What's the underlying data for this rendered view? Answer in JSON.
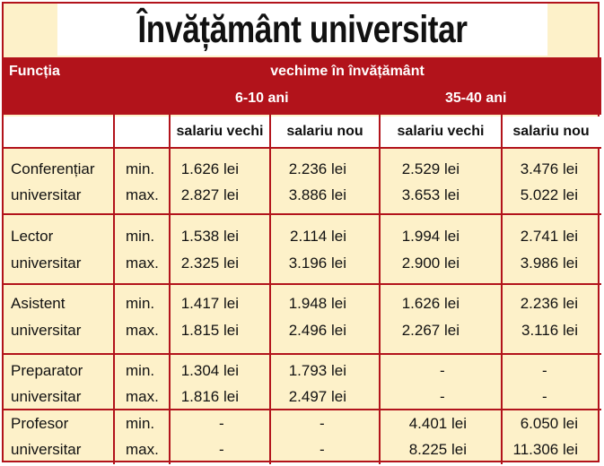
{
  "title": "Învățământ universitar",
  "header": {
    "function_label": "Funcția",
    "seniority_label": "vechime în învățământ",
    "group1": "6-10 ani",
    "group2": "35-40 ani"
  },
  "columns": [
    "salariu vechi",
    "salariu nou",
    "salariu vechi",
    "salariu nou"
  ],
  "rows": [
    {
      "title1": "Conferențiar",
      "title2": "universitar",
      "min": {
        "label": "min.",
        "values": [
          "1.626 lei",
          "2.236 lei",
          "2.529 lei",
          "3.476 lei"
        ]
      },
      "max": {
        "label": "max.",
        "values": [
          "2.827 lei",
          "3.886 lei",
          "3.653 lei",
          "5.022 lei"
        ]
      }
    },
    {
      "title1": "Lector",
      "title2": "universitar",
      "min": {
        "label": "min.",
        "values": [
          "1.538 lei",
          "2.114 lei",
          "1.994 lei",
          "2.741 lei"
        ]
      },
      "max": {
        "label": "max.",
        "values": [
          "2.325 lei",
          "3.196 lei",
          "2.900 lei",
          "3.986 lei"
        ]
      }
    },
    {
      "title1": "Asistent",
      "title2": "universitar",
      "min": {
        "label": "min.",
        "values": [
          "1.417 lei",
          "1.948 lei",
          "1.626 lei",
          "2.236 lei"
        ]
      },
      "max": {
        "label": "max.",
        "values": [
          "1.815 lei",
          "2.496 lei",
          "2.267 lei",
          "3.116 lei"
        ]
      }
    },
    {
      "title1": "Preparator",
      "title2": "universitar",
      "min": {
        "label": "min.",
        "values": [
          "1.304 lei",
          "1.793 lei",
          "-",
          "-"
        ]
      },
      "max": {
        "label": "max.",
        "values": [
          "1.816 lei",
          "2.497 lei",
          "-",
          "-"
        ]
      }
    },
    {
      "title1": "Profesor",
      "title2": "universitar",
      "min": {
        "label": "min.",
        "values": [
          "-",
          "-",
          "4.401 lei",
          "6.050 lei"
        ]
      },
      "max": {
        "label": "max.",
        "values": [
          "-",
          "-",
          "8.225 lei",
          "11.306 lei"
        ]
      }
    }
  ],
  "colors": {
    "accent_red": "#b2131b",
    "cell_bg": "#fdf1c9"
  }
}
